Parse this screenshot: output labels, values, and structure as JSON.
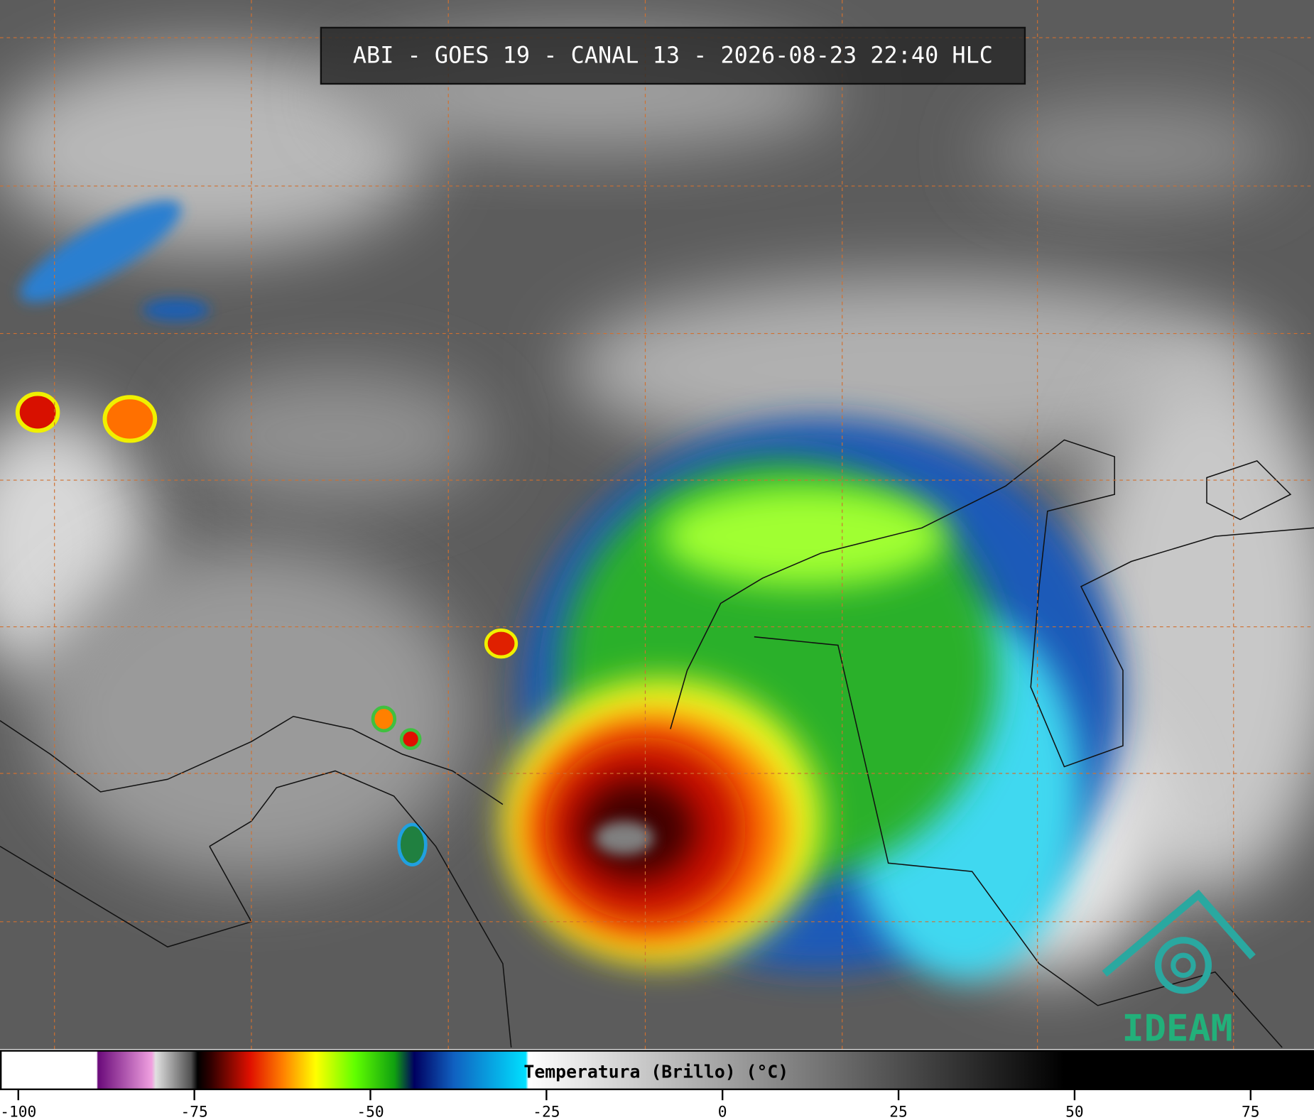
{
  "header": {
    "title": "ABI - GOES 19 - CANAL 13 - 2026-08-23 22:40 HLC"
  },
  "colorbar": {
    "label": "Temperatura (Brillo) (°C)",
    "range": [
      -102.6,
      84
    ],
    "ticks": [
      -100,
      -75,
      -50,
      -25,
      0,
      25,
      50,
      75
    ]
  },
  "logo": {
    "text": "IDEAM"
  }
}
